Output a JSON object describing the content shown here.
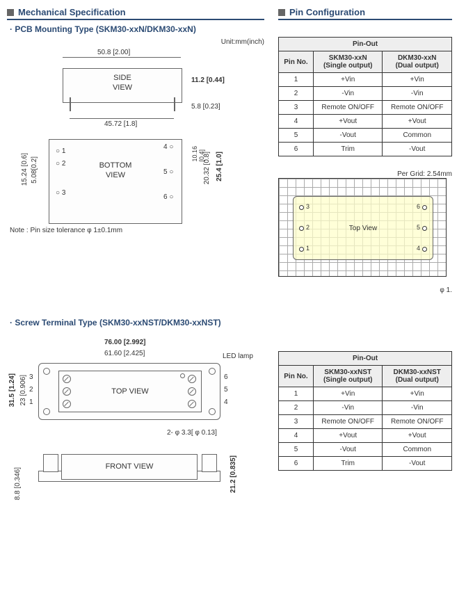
{
  "headers": {
    "mechanical": "Mechanical Specification",
    "pinconfig": "Pin Configuration"
  },
  "pcb": {
    "title": "PCB Mounting Type (SKM30-xxN/DKM30-xxN)",
    "unit": "Unit:mm(inch)",
    "side_view": {
      "label": "SIDE\nVIEW",
      "width": "50.8 [2.00]",
      "height": "11.2 [0.44]",
      "pin_len": "5.8 [0.23]",
      "pin_pitch": "45.72 [1.8]"
    },
    "bottom_view": {
      "label": "BOTTOM\nVIEW",
      "left_h1": "15.24 [0.6]",
      "left_h2": "5.08[0.2]",
      "right_h_outer": "25.4 [1.0]",
      "right_h1": "20.32 [0.8]",
      "right_h2": "10.16\n[0.4]",
      "pins_left": [
        "1",
        "2",
        "3"
      ],
      "pins_right": [
        "4",
        "5",
        "6"
      ]
    },
    "note": "Note : Pin size tolerance φ 1±0.1mm"
  },
  "grid": {
    "per_grid": "Per Grid: 2.54mm",
    "label": "Top View",
    "pins_left": [
      "3",
      "2",
      "1"
    ],
    "pins_right": [
      "6",
      "5",
      "4"
    ],
    "phi": "φ 1."
  },
  "screw": {
    "title": "Screw Terminal Type (SKM30-xxNST/DKM30-xxNST)",
    "top_view": {
      "label": "TOP VIEW",
      "width": "76.00 [2.992]",
      "inner_width": "61.60 [2.425]",
      "led": "LED lamp",
      "height": "31.5 [1.24]",
      "inner_height": "23 [0.906]",
      "hole": "2- φ 3.3[ φ 0.13]",
      "pins_left": [
        "3",
        "2",
        "1"
      ],
      "pins_right": [
        "6",
        "5",
        "4"
      ]
    },
    "front_view": {
      "label": "FRONT VIEW",
      "height": "21.2 [0.835]",
      "base": "8.8 [0.346]"
    }
  },
  "pinout1": {
    "title": "Pin-Out",
    "cols": [
      "Pin No.",
      "SKM30-xxN\n(Single output)",
      "DKM30-xxN\n(Dual output)"
    ],
    "rows": [
      [
        "1",
        "+Vin",
        "+Vin"
      ],
      [
        "2",
        "-Vin",
        "-Vin"
      ],
      [
        "3",
        "Remote ON/OFF",
        "Remote ON/OFF"
      ],
      [
        "4",
        "+Vout",
        "+Vout"
      ],
      [
        "5",
        "-Vout",
        "Common"
      ],
      [
        "6",
        "Trim",
        "-Vout"
      ]
    ]
  },
  "pinout2": {
    "title": "Pin-Out",
    "cols": [
      "Pin No.",
      "SKM30-xxNST\n(Single output)",
      "DKM30-xxNST\n(Dual output)"
    ],
    "rows": [
      [
        "1",
        "+Vin",
        "+Vin"
      ],
      [
        "2",
        "-Vin",
        "-Vin"
      ],
      [
        "3",
        "Remote ON/OFF",
        "Remote ON/OFF"
      ],
      [
        "4",
        "+Vout",
        "+Vout"
      ],
      [
        "5",
        "-Vout",
        "Common"
      ],
      [
        "6",
        "Trim",
        "-Vout"
      ]
    ]
  }
}
